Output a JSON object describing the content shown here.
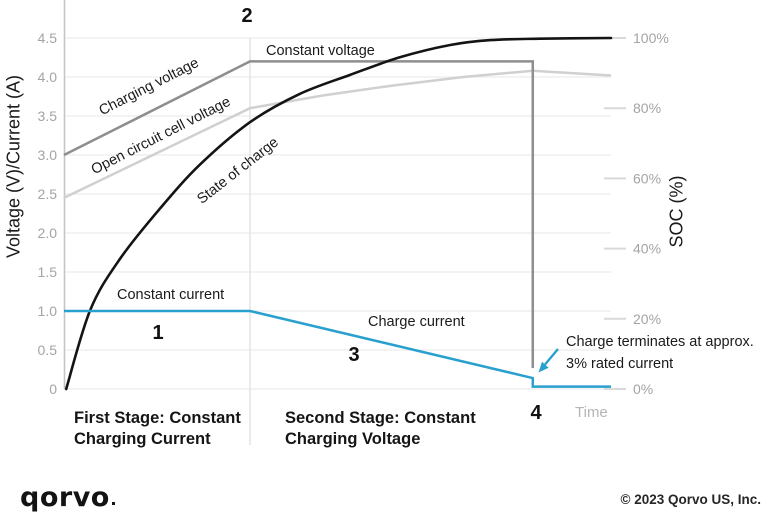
{
  "chart_data": {
    "type": "line",
    "title": "",
    "x_axis": {
      "label": "Time",
      "ticks": []
    },
    "y_left": {
      "label": "Voltage (V)/Current (A)",
      "range": [
        0,
        4.5
      ],
      "ticks": [
        {
          "v": 0,
          "label": "0"
        },
        {
          "v": 0.5,
          "label": "0.5"
        },
        {
          "v": 1,
          "label": "1.0"
        },
        {
          "v": 1.5,
          "label": "1.5"
        },
        {
          "v": 2,
          "label": "2.0"
        },
        {
          "v": 2.5,
          "label": "2.5"
        },
        {
          "v": 3,
          "label": "3.0"
        },
        {
          "v": 3.5,
          "label": "3.5"
        },
        {
          "v": 4,
          "label": "4.0"
        },
        {
          "v": 4.5,
          "label": "4.5"
        }
      ]
    },
    "y_right": {
      "label": "SOC (%)",
      "range": [
        0,
        100
      ],
      "ticks": [
        {
          "v": 0,
          "label": "0%"
        },
        {
          "v": 20,
          "label": "20%"
        },
        {
          "v": 40,
          "label": "40%"
        },
        {
          "v": 60,
          "label": "60%"
        },
        {
          "v": 80,
          "label": "80%"
        },
        {
          "v": 100,
          "label": "100%"
        }
      ]
    },
    "series": [
      {
        "name": "Charging voltage",
        "axis": "left",
        "color": "#8e8e8e",
        "smooth": false,
        "points": [
          [
            0,
            3.0
          ],
          [
            34,
            4.2
          ],
          [
            85.7,
            4.2
          ],
          [
            85.7,
            0.27
          ]
        ]
      },
      {
        "name": "Open circuit cell voltage",
        "axis": "left",
        "color": "#d0d0d0",
        "smooth": false,
        "points": [
          [
            0,
            2.45
          ],
          [
            34,
            3.6
          ],
          [
            47,
            3.76
          ],
          [
            60,
            3.89
          ],
          [
            73,
            4.0
          ],
          [
            85.7,
            4.08
          ],
          [
            100,
            4.02
          ]
        ]
      },
      {
        "name": "State of charge",
        "axis": "right",
        "color": "#141414",
        "smooth": true,
        "points": [
          [
            0.4,
            0
          ],
          [
            4.8,
            22.5
          ],
          [
            10.2,
            37
          ],
          [
            17.6,
            51.5
          ],
          [
            24.9,
            64
          ],
          [
            34,
            76
          ],
          [
            43,
            84
          ],
          [
            52.3,
            89.5
          ],
          [
            61.4,
            94.5
          ],
          [
            70.6,
            98
          ],
          [
            78,
            99.4
          ],
          [
            87,
            99.8
          ],
          [
            100,
            100
          ]
        ]
      },
      {
        "name": "Charge current",
        "axis": "left",
        "color": "#29a0ce",
        "smooth": false,
        "points": [
          [
            0,
            1.0
          ],
          [
            34,
            1.0
          ],
          [
            85.7,
            0.14
          ],
          [
            85.7,
            0.03
          ],
          [
            100,
            0.03
          ]
        ]
      }
    ],
    "annotations": {
      "marker_1": "1",
      "marker_2": "2",
      "marker_3": "3",
      "marker_4": "4",
      "constant_voltage": "Constant voltage",
      "constant_current": "Constant current",
      "charge_current": "Charge current",
      "terminate_note": "Charge terminates at approx.\n3% rated current",
      "first_stage": "First Stage: Constant\nCharging Current",
      "second_stage": "Second Stage: Constant\nCharging Voltage"
    },
    "legend": "inline line labels, no legend box",
    "grid": "horizontal gridlines every 0.5 V; one vertical stage divider"
  },
  "theme": {
    "grid": "#ececec",
    "spine": "#c5c5c5",
    "divider": "#e2e2e2",
    "right_dash": "#d9d9d9",
    "tick_text": "#a4a4a4",
    "text": "#1a1a1a",
    "muted_text": "#b5b5b5",
    "accent_blue": "#29a0ce"
  },
  "footer": {
    "logo_text": "qorvo",
    "copyright": "© 2023 Qorvo US, Inc."
  }
}
